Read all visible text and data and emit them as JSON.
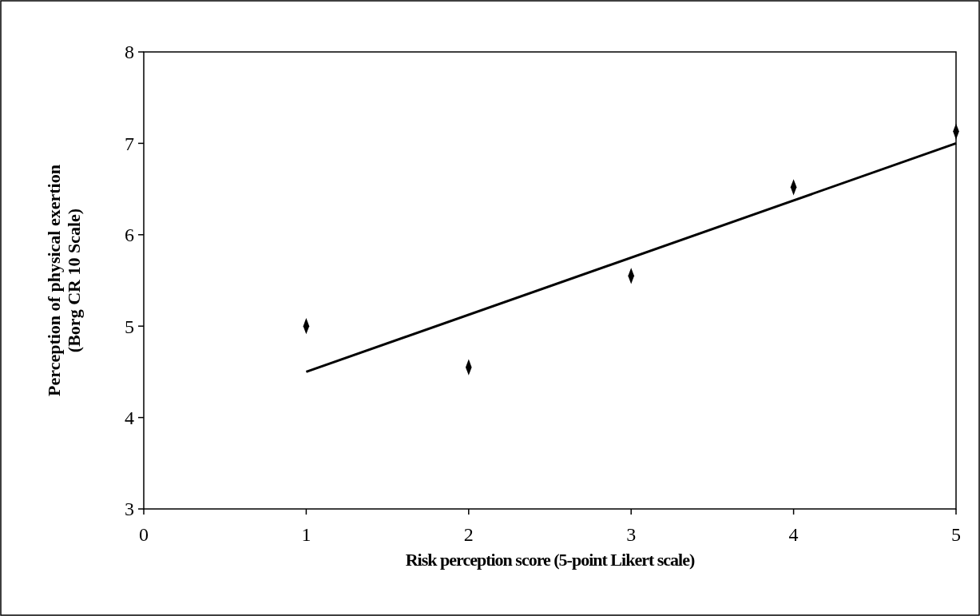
{
  "chart_data": {
    "type": "scatter",
    "xlabel": "Risk perception score (5-point Likert scale)",
    "ylabel": "Perception of physical exertion\n(Borg CR 10 Scale)",
    "xlim": [
      0,
      5
    ],
    "xticks": [
      0,
      1,
      2,
      3,
      4,
      5
    ],
    "ylim": [
      3,
      8
    ],
    "yticks": [
      3,
      4,
      5,
      6,
      7,
      8
    ],
    "grid": false,
    "marker": "diamond",
    "series": [
      {
        "color": "#000000",
        "x": [
          1,
          2,
          3,
          4,
          5
        ],
        "values": [
          5.0,
          4.55,
          5.55,
          6.52,
          7.13
        ]
      },
      {
        "type": "line",
        "color": "#000000",
        "marker": "none",
        "x": [
          1,
          5
        ],
        "values": [
          4.5,
          7.0
        ]
      }
    ]
  }
}
